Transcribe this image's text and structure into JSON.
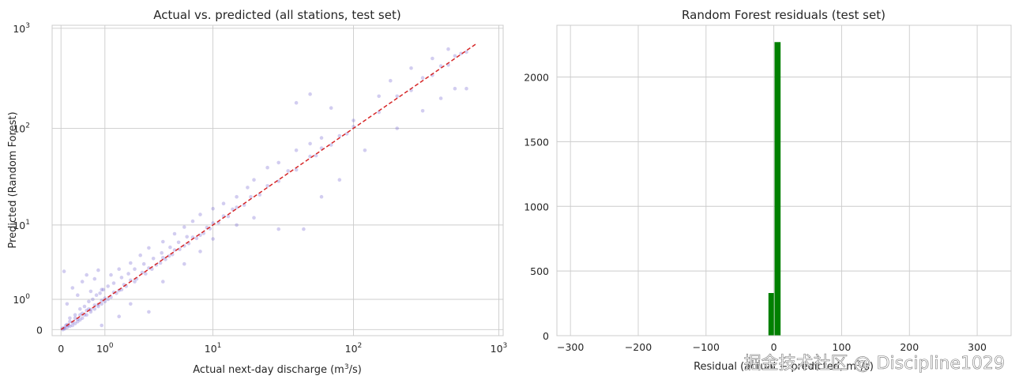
{
  "chart_data": [
    {
      "type": "scatter",
      "title": "Actual vs. predicted (all stations, test set)",
      "xlabel": "Actual next-day discharge (m",
      "xlabel_sup": "3",
      "xlabel_tail": "/s)",
      "ylabel": "Predicted (Random Forest)",
      "scale": "symlog",
      "xlim": [
        -0.15,
        1000
      ],
      "ylim": [
        -0.15,
        1000
      ],
      "x_ticks": [
        {
          "value": 0,
          "base": "0",
          "exp": ""
        },
        {
          "value": 1,
          "base": "10",
          "exp": "0"
        },
        {
          "value": 10,
          "base": "10",
          "exp": "1"
        },
        {
          "value": 100,
          "base": "10",
          "exp": "2"
        },
        {
          "value": 1000,
          "base": "10",
          "exp": "3"
        }
      ],
      "y_ticks": [
        {
          "value": 0,
          "base": "0",
          "exp": ""
        },
        {
          "value": 1,
          "base": "10",
          "exp": "0"
        },
        {
          "value": 10,
          "base": "10",
          "exp": "1"
        },
        {
          "value": 100,
          "base": "10",
          "exp": "2"
        },
        {
          "value": 1000,
          "base": "10",
          "exp": "3"
        }
      ],
      "reference_line": {
        "from": 0,
        "to": 700,
        "color": "#d62728",
        "style": "dashed"
      },
      "point_color": "#6a5acd",
      "points": [
        [
          0.02,
          0.03
        ],
        [
          0.05,
          0.04
        ],
        [
          0.08,
          0.1
        ],
        [
          0.1,
          0.12
        ],
        [
          0.12,
          0.1
        ],
        [
          0.15,
          0.2
        ],
        [
          0.2,
          0.18
        ],
        [
          0.25,
          0.3
        ],
        [
          0.3,
          0.27
        ],
        [
          0.35,
          0.4
        ],
        [
          0.4,
          0.45
        ],
        [
          0.45,
          0.4
        ],
        [
          0.5,
          0.55
        ],
        [
          0.55,
          0.6
        ],
        [
          0.6,
          0.58
        ],
        [
          0.7,
          0.75
        ],
        [
          0.8,
          0.78
        ],
        [
          0.9,
          0.95
        ],
        [
          1.0,
          1.05
        ],
        [
          1.1,
          1.0
        ],
        [
          1.3,
          1.35
        ],
        [
          1.5,
          1.45
        ],
        [
          1.7,
          1.8
        ],
        [
          2.0,
          2.1
        ],
        [
          2.3,
          2.2
        ],
        [
          2.6,
          2.7
        ],
        [
          3.0,
          3.1
        ],
        [
          3.5,
          3.4
        ],
        [
          4.0,
          4.2
        ],
        [
          4.5,
          4.4
        ],
        [
          5.0,
          5.2
        ],
        [
          6.0,
          5.8
        ],
        [
          7.0,
          7.3
        ],
        [
          8.0,
          7.7
        ],
        [
          9.0,
          9.4
        ],
        [
          10,
          10.5
        ],
        [
          11,
          10.6
        ],
        [
          12,
          12.5
        ],
        [
          13,
          12.4
        ],
        [
          14,
          14.8
        ],
        [
          15,
          15.5
        ],
        [
          17,
          16.4
        ],
        [
          19,
          20
        ],
        [
          22,
          21
        ],
        [
          25,
          26
        ],
        [
          30,
          29
        ],
        [
          35,
          37
        ],
        [
          40,
          38
        ],
        [
          50,
          52
        ],
        [
          55,
          53
        ],
        [
          60,
          63
        ],
        [
          70,
          68
        ],
        [
          80,
          84
        ],
        [
          90,
          88
        ],
        [
          100,
          104
        ],
        [
          150,
          145
        ],
        [
          200,
          210
        ],
        [
          250,
          240
        ],
        [
          300,
          320
        ],
        [
          350,
          340
        ],
        [
          400,
          420
        ],
        [
          450,
          430
        ],
        [
          500,
          530
        ],
        [
          600,
          580
        ],
        [
          0.05,
          2.8
        ],
        [
          0.1,
          0.8
        ],
        [
          0.2,
          1.6
        ],
        [
          0.3,
          1.2
        ],
        [
          0.4,
          2.0
        ],
        [
          0.5,
          2.5
        ],
        [
          0.6,
          1.4
        ],
        [
          0.7,
          2.2
        ],
        [
          0.8,
          2.9
        ],
        [
          0.9,
          1.5
        ],
        [
          1.2,
          2.5
        ],
        [
          1.5,
          3.0
        ],
        [
          2.0,
          3.6
        ],
        [
          2.5,
          4.5
        ],
        [
          3.0,
          5.5
        ],
        [
          4.0,
          6.5
        ],
        [
          5.0,
          8.0
        ],
        [
          6.0,
          9.5
        ],
        [
          7.0,
          11
        ],
        [
          8.0,
          13
        ],
        [
          10,
          15
        ],
        [
          12,
          17
        ],
        [
          15,
          20
        ],
        [
          18,
          25
        ],
        [
          20,
          30
        ],
        [
          25,
          40
        ],
        [
          30,
          45
        ],
        [
          40,
          60
        ],
        [
          50,
          70
        ],
        [
          60,
          80
        ],
        [
          3.0,
          0.5
        ],
        [
          1.5,
          0.35
        ],
        [
          0.9,
          0.1
        ],
        [
          2.0,
          0.8
        ],
        [
          4.0,
          2.0
        ],
        [
          6.0,
          3.5
        ],
        [
          8.0,
          5.0
        ],
        [
          10,
          7.0
        ],
        [
          15,
          10
        ],
        [
          20,
          12
        ],
        [
          30,
          9
        ],
        [
          45,
          9
        ],
        [
          60,
          20
        ],
        [
          80,
          30
        ],
        [
          120,
          60
        ],
        [
          200,
          100
        ],
        [
          300,
          150
        ],
        [
          400,
          200
        ],
        [
          500,
          250
        ],
        [
          600,
          250
        ],
        [
          40,
          180
        ],
        [
          50,
          220
        ],
        [
          70,
          160
        ],
        [
          100,
          120
        ],
        [
          150,
          210
        ],
        [
          180,
          300
        ],
        [
          250,
          400
        ],
        [
          350,
          500
        ],
        [
          450,
          620
        ],
        [
          550,
          560
        ],
        [
          0.03,
          0.0
        ],
        [
          0.06,
          0.02
        ],
        [
          0.1,
          0.05
        ],
        [
          0.15,
          0.08
        ],
        [
          0.2,
          0.1
        ],
        [
          0.25,
          0.15
        ],
        [
          0.3,
          0.2
        ],
        [
          0.35,
          0.25
        ],
        [
          0.4,
          0.3
        ],
        [
          0.5,
          0.4
        ],
        [
          0.6,
          0.5
        ],
        [
          0.7,
          0.6
        ],
        [
          0.8,
          0.7
        ],
        [
          0.9,
          0.8
        ],
        [
          1.0,
          0.9
        ],
        [
          1.2,
          1.1
        ],
        [
          1.4,
          1.3
        ],
        [
          1.6,
          1.5
        ],
        [
          1.8,
          1.7
        ],
        [
          2.2,
          2.0
        ],
        [
          2.8,
          2.6
        ],
        [
          3.2,
          3.0
        ],
        [
          3.8,
          3.6
        ],
        [
          4.2,
          4.0
        ],
        [
          4.8,
          4.6
        ],
        [
          5.5,
          5.3
        ],
        [
          6.5,
          6.2
        ],
        [
          7.5,
          7.1
        ],
        [
          8.5,
          8.1
        ],
        [
          9.5,
          9.1
        ],
        [
          0.15,
          0.3
        ],
        [
          0.25,
          0.4
        ],
        [
          0.35,
          0.6
        ],
        [
          0.45,
          0.7
        ],
        [
          0.55,
          0.9
        ],
        [
          0.65,
          1.0
        ],
        [
          0.75,
          1.2
        ],
        [
          0.85,
          1.3
        ],
        [
          0.95,
          1.5
        ],
        [
          1.1,
          1.7
        ],
        [
          1.3,
          1.9
        ],
        [
          1.6,
          2.3
        ],
        [
          1.9,
          2.6
        ],
        [
          2.2,
          3.0
        ],
        [
          2.7,
          3.5
        ],
        [
          3.3,
          4.1
        ],
        [
          3.9,
          4.8
        ],
        [
          4.6,
          5.6
        ],
        [
          5.4,
          6.4
        ],
        [
          6.3,
          7.4
        ]
      ]
    },
    {
      "type": "bar",
      "title": "Random Forest residuals (test set)",
      "xlabel": "Residual (actual − predicted, m",
      "xlabel_sup": "3",
      "xlabel_tail": "/s)",
      "ylabel": "",
      "xlim": [
        -320,
        350
      ],
      "ylim": [
        0,
        2400
      ],
      "x_ticks": [
        {
          "value": -300,
          "label": "−300"
        },
        {
          "value": -200,
          "label": "−200"
        },
        {
          "value": -100,
          "label": "−100"
        },
        {
          "value": 0,
          "label": "0"
        },
        {
          "value": 100,
          "label": "100"
        },
        {
          "value": 200,
          "label": "200"
        },
        {
          "value": 300,
          "label": "300"
        }
      ],
      "y_ticks": [
        {
          "value": 0,
          "label": "0"
        },
        {
          "value": 500,
          "label": "500"
        },
        {
          "value": 1000,
          "label": "1000"
        },
        {
          "value": 1500,
          "label": "1500"
        },
        {
          "value": 2000,
          "label": "2000"
        }
      ],
      "bar_color": "#008000",
      "bins": [
        {
          "x0": -8,
          "x1": 0,
          "count": 330
        },
        {
          "x0": 1,
          "x1": 10,
          "count": 2270
        }
      ]
    }
  ],
  "watermark": "掘金技术社区 @ Discipline1029"
}
